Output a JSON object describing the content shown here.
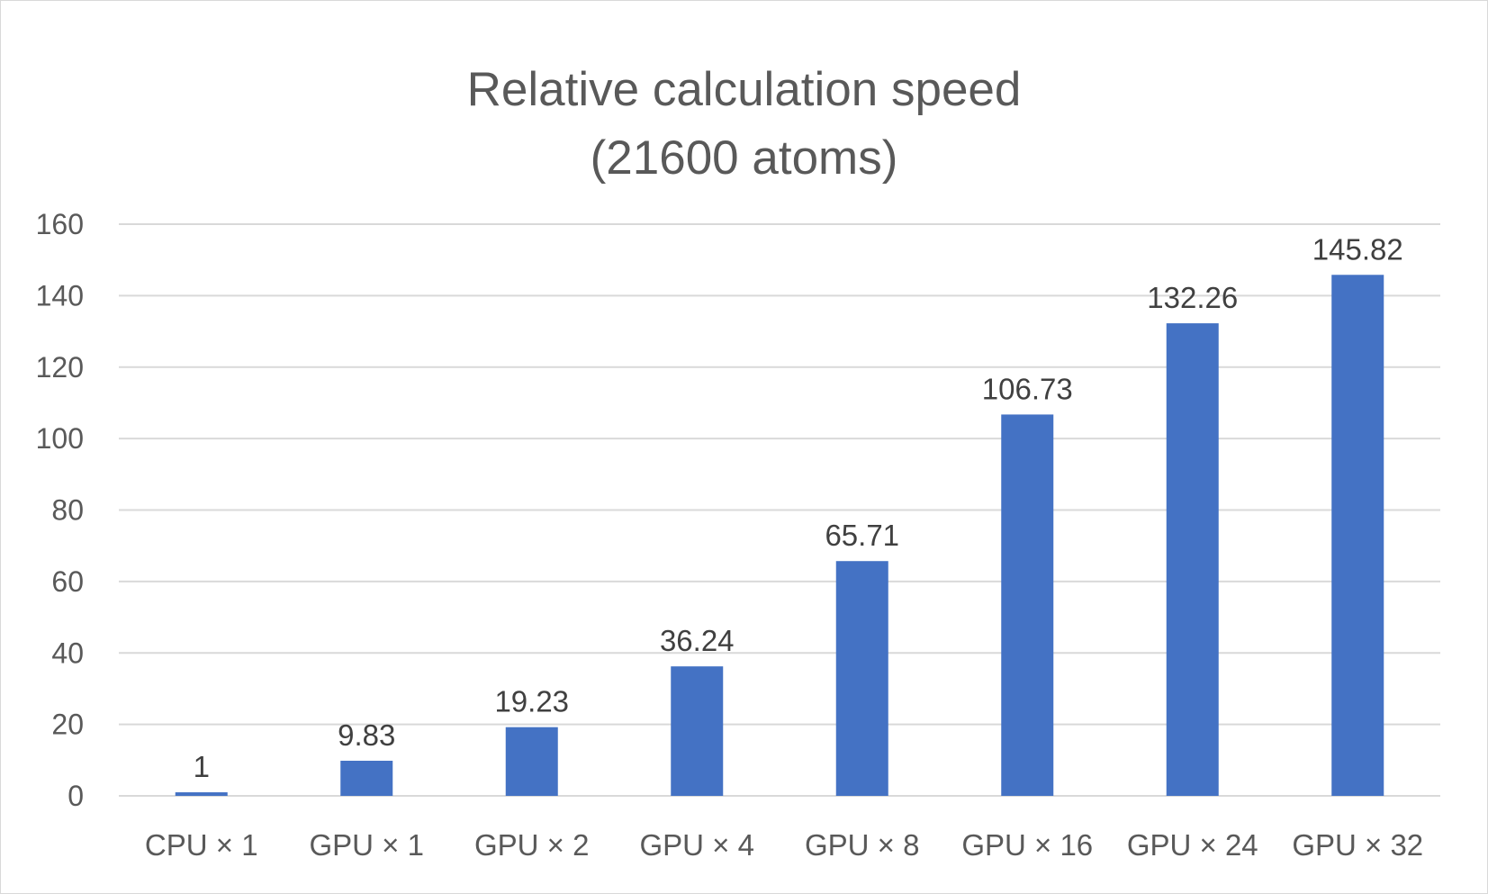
{
  "chart_data": {
    "type": "bar",
    "title": "Relative calculation speed",
    "subtitle": "(21600 atoms)",
    "categories": [
      "CPU × 1",
      "GPU × 1",
      "GPU × 2",
      "GPU × 4",
      "GPU × 8",
      "GPU × 16",
      "GPU × 24",
      "GPU × 32"
    ],
    "values": [
      1,
      9.83,
      19.23,
      36.24,
      65.71,
      106.73,
      132.26,
      145.82
    ],
    "data_labels": [
      "1",
      "9.83",
      "19.23",
      "36.24",
      "65.71",
      "106.73",
      "132.26",
      "145.82"
    ],
    "ylim": [
      0,
      160
    ],
    "yticks": [
      0,
      20,
      40,
      60,
      80,
      100,
      120,
      140,
      160
    ],
    "xlabel": "",
    "ylabel": "",
    "grid": true,
    "legend": "none",
    "bar_color": "#4472c4"
  }
}
